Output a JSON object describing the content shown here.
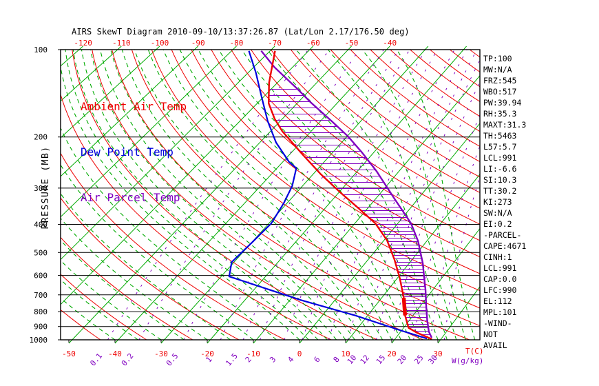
{
  "title": "AIRS SkewT Diagram 2010-09-10/13:37:26.87 (Lat/Lon 2.17/176.50 deg)",
  "colors": {
    "red": "#ee0000",
    "green": "#00aa00",
    "blue": "#0000dd",
    "violet": "#8000c0",
    "black": "#000000",
    "background": "#ffffff"
  },
  "legend": {
    "items": [
      {
        "label": "Ambient Air Temp",
        "color": "#ee0000"
      },
      {
        "label": "Dew Point Temp",
        "color": "#0000dd"
      },
      {
        "label": "Air Parcel Temp",
        "color": "#8000c0"
      }
    ]
  },
  "stats_panel": {
    "lines": [
      "TP:100",
      "MW:N/A",
      "FRZ:545",
      "WBO:517",
      "PW:39.94",
      "RH:35.3",
      "MAXT:31.3",
      "TH:5463",
      "L57:5.7",
      "LCL:991",
      "LI:-6.6",
      "SI:10.3",
      "TT:30.2",
      "KI:273",
      "SW:N/A",
      "EI:0.2",
      "-PARCEL-",
      "CAPE:4671",
      "CINH:1",
      "LCL:991",
      "CAP:0.0",
      "LFC:990",
      "EL:112",
      "MPL:101",
      "-WIND-",
      "NOT",
      "AVAIL"
    ]
  },
  "chart_data": {
    "type": "line",
    "subtype": "skewt_log_p",
    "pressure_axis": {
      "label": "PRESSURE (MB)",
      "scale": "log",
      "range": [
        100,
        1000
      ],
      "ticks": [
        100,
        200,
        300,
        400,
        500,
        600,
        700,
        800,
        900,
        1000
      ]
    },
    "temp_axis_top": {
      "color": "#ee0000",
      "ticks": [
        -120,
        -110,
        -100,
        -90,
        -80,
        -70,
        -60,
        -50,
        -40
      ]
    },
    "temp_axis_bottom": {
      "color": "#ee0000",
      "label": "T(C)",
      "ticks": [
        -50,
        -40,
        -30,
        -20,
        -10,
        0,
        10,
        20,
        30
      ]
    },
    "mixing_ratio_axis": {
      "color": "#8000c0",
      "label": "W(g/kg)",
      "ticks": [
        0.1,
        0.2,
        0.5,
        1,
        1.5,
        2,
        3,
        4,
        6,
        8,
        10,
        12,
        15,
        20,
        25,
        30
      ]
    },
    "background": {
      "isotherms_C": {
        "min": -180,
        "max": 40,
        "step": 10
      },
      "dry_adiabats_theta_K": {
        "min": 230,
        "max": 510,
        "step": 10
      },
      "moist_adiabats_surface_C": {
        "cold_min": -40,
        "cold_max": 0,
        "cold_step": 5,
        "warm_min": 2,
        "warm_max": 38,
        "warm_step": 2
      },
      "mixing_ratio_g_per_kg": [
        0.1,
        0.2,
        0.5,
        1,
        1.5,
        2,
        3,
        4,
        6,
        8,
        10,
        12,
        15,
        20,
        25,
        30
      ]
    },
    "series": [
      {
        "name": "Ambient Air Temp",
        "color": "#ee0000",
        "points_p_T": [
          [
            101,
            -69.6
          ],
          [
            130,
            -62.8
          ],
          [
            153,
            -57.7
          ],
          [
            173,
            -52.4
          ],
          [
            191,
            -47.5
          ],
          [
            228,
            -37.5
          ],
          [
            269,
            -28.2
          ],
          [
            312,
            -19.4
          ],
          [
            352,
            -12.1
          ],
          [
            397,
            -5.1
          ],
          [
            454,
            0.9
          ],
          [
            528,
            6.2
          ],
          [
            615,
            11.0
          ],
          [
            716,
            15.3
          ],
          [
            824,
            18.7
          ],
          [
            909,
            21.6
          ],
          [
            944,
            24.2
          ],
          [
            995,
            28.6
          ]
        ]
      },
      {
        "name": "Dew Point Temp",
        "color": "#0000dd",
        "points_p_T": [
          [
            101,
            -76.4
          ],
          [
            120,
            -68.8
          ],
          [
            145,
            -61.2
          ],
          [
            176,
            -53.6
          ],
          [
            209,
            -46.3
          ],
          [
            244,
            -38.6
          ],
          [
            256,
            -35.5
          ],
          [
            295,
            -32.5
          ],
          [
            339,
            -30.7
          ],
          [
            397,
            -29.3
          ],
          [
            462,
            -29.7
          ],
          [
            540,
            -30.2
          ],
          [
            605,
            -27.8
          ],
          [
            729,
            -7.2
          ],
          [
            824,
            7.7
          ],
          [
            929,
            20.4
          ],
          [
            990,
            27.4
          ]
        ]
      },
      {
        "name": "Air Parcel Temp",
        "color": "#8000c0",
        "points_p_T": [
          [
            101,
            -73.2
          ],
          [
            115,
            -65.4
          ],
          [
            137,
            -53.8
          ],
          [
            152,
            -47.3
          ],
          [
            177,
            -37.4
          ],
          [
            199,
            -30.1
          ],
          [
            226,
            -23.1
          ],
          [
            262,
            -15.6
          ],
          [
            324,
            -5.9
          ],
          [
            397,
            3.2
          ],
          [
            457,
            8.2
          ],
          [
            545,
            13.4
          ],
          [
            601,
            15.9
          ],
          [
            671,
            18.7
          ],
          [
            770,
            21.9
          ],
          [
            856,
            24.4
          ],
          [
            938,
            26.7
          ],
          [
            983,
            28.3
          ]
        ]
      }
    ],
    "cape_hatch": {
      "between": [
        "Ambient Air Temp",
        "Air Parcel Temp"
      ],
      "pressure_range": [
        137,
        975
      ]
    },
    "thick_red_segment_p": [
      716,
      824
    ]
  }
}
